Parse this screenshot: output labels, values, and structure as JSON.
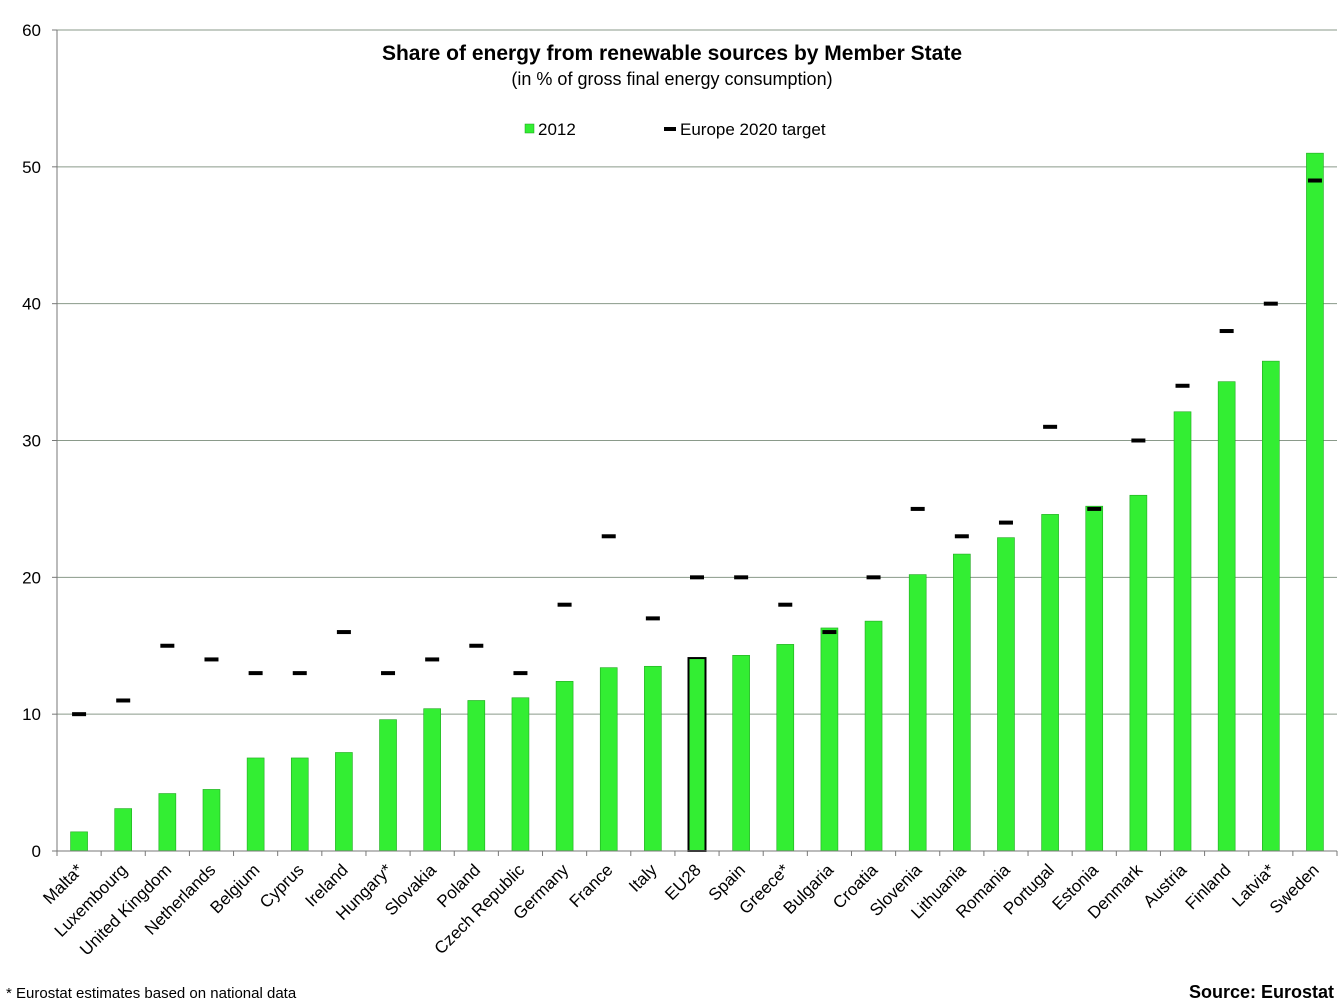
{
  "chart_data": {
    "type": "bar",
    "title": "Share of energy from renewable sources by Member State",
    "subtitle": "(in % of gross final energy consumption)",
    "categories": [
      "Malta*",
      "Luxembourg",
      "United Kingdom",
      "Netherlands",
      "Belgium",
      "Cyprus",
      "Ireland",
      "Hungary*",
      "Slovakia",
      "Poland",
      "Czech Republic",
      "Germany",
      "France",
      "Italy",
      "EU28",
      "Spain",
      "Greece*",
      "Bulgaria",
      "Croatia",
      "Slovenia",
      "Lithuania",
      "Romania",
      "Portugal",
      "Estonia",
      "Denmark",
      "Austria",
      "Finland",
      "Latvia*",
      "Sweden"
    ],
    "series": [
      {
        "name": "2012",
        "type": "bar",
        "color": "#33ee33",
        "values": [
          1.4,
          3.1,
          4.2,
          4.5,
          6.8,
          6.8,
          7.2,
          9.6,
          10.4,
          11.0,
          11.2,
          12.4,
          13.4,
          13.5,
          14.1,
          14.3,
          15.1,
          16.3,
          16.8,
          20.2,
          21.7,
          22.9,
          24.6,
          25.2,
          26.0,
          32.1,
          34.3,
          35.8,
          51.0
        ]
      },
      {
        "name": "Europe 2020 target",
        "type": "marker",
        "color": "#000000",
        "values": [
          10,
          11,
          15,
          14,
          13,
          13,
          16,
          13,
          14,
          15,
          13,
          18,
          23,
          17,
          20,
          20,
          18,
          16,
          20,
          25,
          23,
          24,
          31,
          25,
          30,
          34,
          38,
          40,
          49
        ]
      }
    ],
    "highlight_category": "EU28",
    "ylim": [
      0,
      60
    ],
    "yticks": [
      "0",
      "10",
      "20",
      "30",
      "40",
      "50",
      "60"
    ],
    "grid": true,
    "legend_position": "top-center"
  },
  "legend": {
    "bar_label": "2012",
    "marker_label": "Europe 2020 target"
  },
  "footnote": "* Eurostat estimates based on national data",
  "source": "Source: Eurostat"
}
